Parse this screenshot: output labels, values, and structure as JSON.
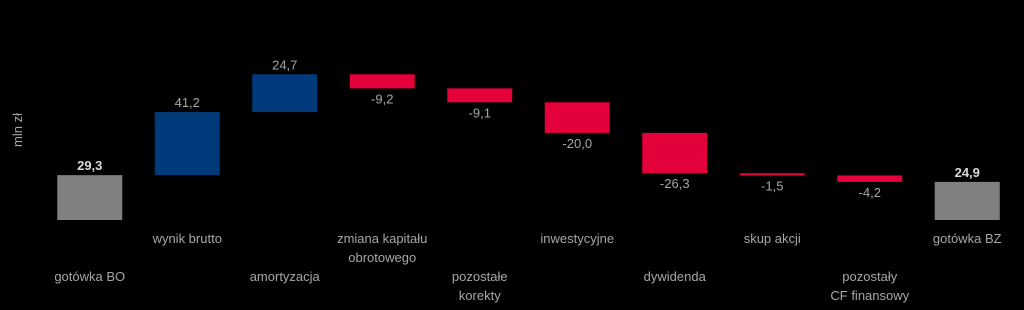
{
  "chart_data": {
    "type": "waterfall",
    "y_label": "mln zł",
    "categories": [
      "gotówka BO",
      "wynik brutto",
      "amortyzacja",
      "zmiana kapitału\nobrotowego",
      "pozostałe\nkorekty",
      "inwestycyjne",
      "dywidenda",
      "skup akcji",
      "pozostały\nCF finansowy",
      "gotówka BZ"
    ],
    "values": [
      29.3,
      41.2,
      24.7,
      -9.2,
      -9.1,
      -20.0,
      -26.3,
      -1.5,
      -4.2,
      24.9
    ],
    "value_labels": [
      "29,3",
      "41,2",
      "24,7",
      "-9,2",
      "-9,1",
      "-20,0",
      "-26,3",
      "-1,5",
      "-4,2",
      "24,9"
    ],
    "measures": [
      "total",
      "relative",
      "relative",
      "relative",
      "relative",
      "relative",
      "relative",
      "relative",
      "relative",
      "total"
    ],
    "colors": {
      "total": "#808080",
      "increase": "#003a7a",
      "decrease": "#e4003a"
    },
    "ylim": [
      0,
      130
    ]
  }
}
